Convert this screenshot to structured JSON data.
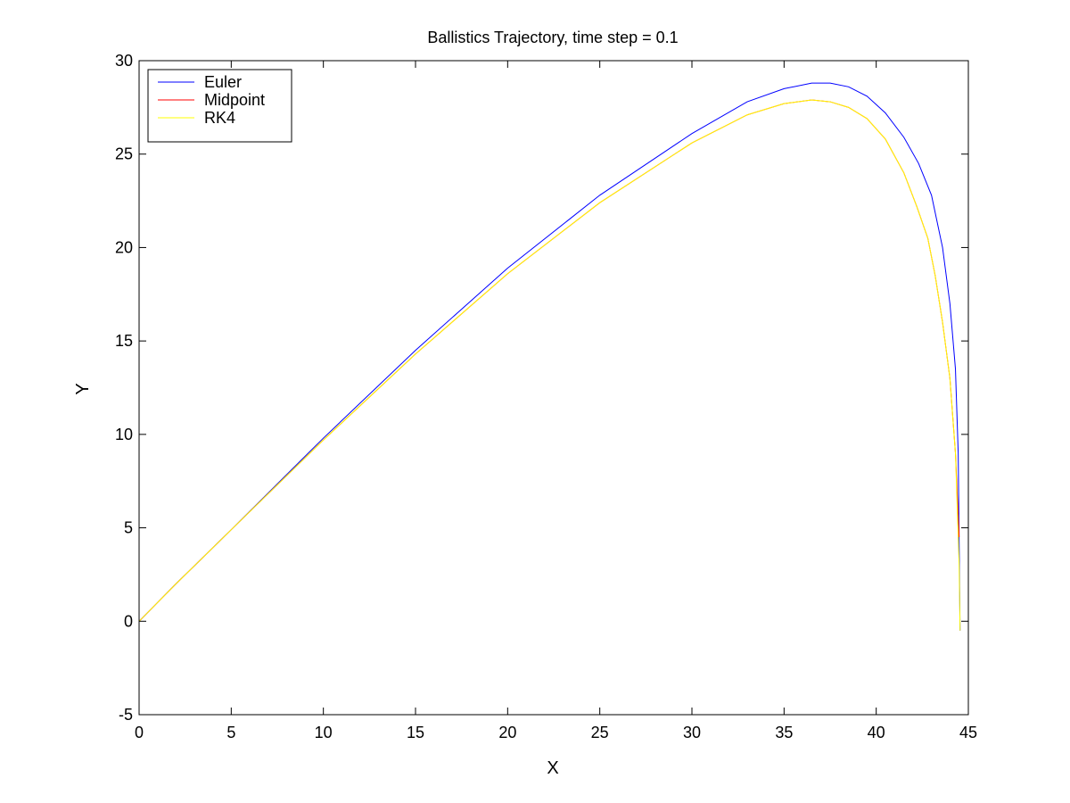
{
  "chart_data": {
    "type": "line",
    "title": "Ballistics Trajectory, time step = 0.1",
    "xlabel": "X",
    "ylabel": "Y",
    "xlim": [
      0,
      45
    ],
    "ylim": [
      -5,
      30
    ],
    "xticks": [
      0,
      5,
      10,
      15,
      20,
      25,
      30,
      35,
      40,
      45
    ],
    "yticks": [
      -5,
      0,
      5,
      10,
      15,
      20,
      25,
      30
    ],
    "grid": false,
    "legend_position": "top-left",
    "series": [
      {
        "name": "Euler",
        "color": "#0000ff",
        "x": [
          0,
          2,
          5,
          10,
          15,
          20,
          25,
          30,
          33,
          35,
          36.5,
          37.5,
          38.5,
          39.5,
          40.5,
          41.5,
          42.3,
          43,
          43.6,
          44,
          44.3,
          44.45,
          44.55
        ],
        "y": [
          0,
          2.0,
          4.9,
          9.8,
          14.5,
          18.9,
          22.8,
          26.1,
          27.8,
          28.5,
          28.8,
          28.8,
          28.6,
          28.1,
          27.2,
          25.9,
          24.5,
          22.8,
          20.0,
          17.0,
          13.5,
          9.0,
          -0.5
        ]
      },
      {
        "name": "Midpoint",
        "color": "#ff0000",
        "x": [
          0,
          2,
          5,
          10,
          15,
          20,
          25,
          30,
          33,
          35,
          36.5,
          37.5,
          38.5,
          39.5,
          40.5,
          41.5,
          42.2,
          42.8,
          43.2,
          43.6,
          44,
          44.3,
          44.5
        ],
        "y": [
          0,
          2.0,
          4.9,
          9.7,
          14.3,
          18.6,
          22.4,
          25.6,
          27.1,
          27.7,
          27.9,
          27.8,
          27.5,
          26.9,
          25.8,
          24.0,
          22.2,
          20.5,
          18.5,
          16.0,
          13.0,
          9.0,
          4.5
        ]
      },
      {
        "name": "RK4",
        "color": "#ffff00",
        "x": [
          0,
          2,
          5,
          10,
          15,
          20,
          25,
          30,
          33,
          35,
          36.5,
          37.5,
          38.5,
          39.5,
          40.5,
          41.5,
          42.2,
          42.8,
          43.2,
          43.6,
          44,
          44.3,
          44.5,
          44.55
        ],
        "y": [
          0,
          2.0,
          4.9,
          9.7,
          14.3,
          18.6,
          22.4,
          25.6,
          27.1,
          27.7,
          27.9,
          27.8,
          27.5,
          26.9,
          25.8,
          24.0,
          22.2,
          20.5,
          18.5,
          16.0,
          13.0,
          9.0,
          3.0,
          -0.5
        ]
      }
    ]
  }
}
